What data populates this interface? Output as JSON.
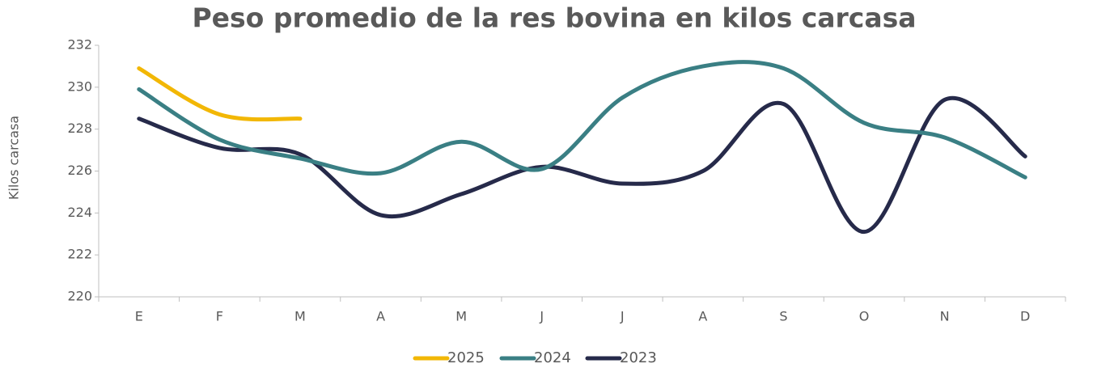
{
  "chart_data": {
    "type": "line",
    "title": "Peso promedio de la res bovina en kilos carcasa",
    "y_label": "Kilos carcasa",
    "categories": [
      "E",
      "F",
      "M",
      "A",
      "M",
      "J",
      "J",
      "A",
      "S",
      "O",
      "N",
      "D"
    ],
    "series": [
      {
        "name": "2025",
        "color": "#f2b705",
        "values": [
          230.9,
          228.7,
          228.5,
          null,
          null,
          null,
          null,
          null,
          null,
          null,
          null,
          null
        ]
      },
      {
        "name": "2024",
        "color": "#3a7f84",
        "values": [
          229.9,
          227.5,
          226.6,
          225.9,
          227.4,
          226.1,
          229.5,
          231.0,
          230.9,
          228.3,
          227.6,
          225.7
        ]
      },
      {
        "name": "2023",
        "color": "#262a4a",
        "values": [
          228.5,
          227.1,
          226.8,
          223.9,
          224.9,
          226.2,
          225.4,
          226.0,
          229.2,
          223.1,
          229.4,
          226.7
        ]
      }
    ],
    "ylim": [
      220,
      232
    ],
    "yticks": [
      220,
      222,
      224,
      226,
      228,
      230,
      232
    ],
    "legend": "bottom",
    "smooth": true
  }
}
